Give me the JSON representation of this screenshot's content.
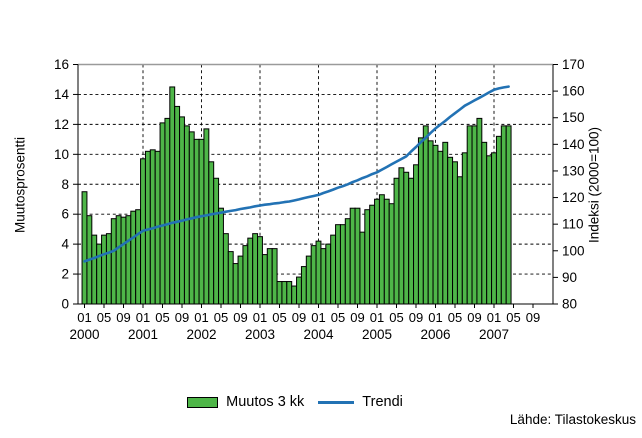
{
  "chart_data": {
    "type": "bar",
    "title": "",
    "x": [
      "2000-01",
      "2000-02",
      "2000-03",
      "2000-04",
      "2000-05",
      "2000-06",
      "2000-07",
      "2000-08",
      "2000-09",
      "2000-10",
      "2000-11",
      "2000-12",
      "2001-01",
      "2001-02",
      "2001-03",
      "2001-04",
      "2001-05",
      "2001-06",
      "2001-07",
      "2001-08",
      "2001-09",
      "2001-10",
      "2001-11",
      "2001-12",
      "2002-01",
      "2002-02",
      "2002-03",
      "2002-04",
      "2002-05",
      "2002-06",
      "2002-07",
      "2002-08",
      "2002-09",
      "2002-10",
      "2002-11",
      "2002-12",
      "2003-01",
      "2003-02",
      "2003-03",
      "2003-04",
      "2003-05",
      "2003-06",
      "2003-07",
      "2003-08",
      "2003-09",
      "2003-10",
      "2003-11",
      "2003-12",
      "2004-01",
      "2004-02",
      "2004-03",
      "2004-04",
      "2004-05",
      "2004-06",
      "2004-07",
      "2004-08",
      "2004-09",
      "2004-10",
      "2004-11",
      "2004-12",
      "2005-01",
      "2005-02",
      "2005-03",
      "2005-04",
      "2005-05",
      "2005-06",
      "2005-07",
      "2005-08",
      "2005-09",
      "2005-10",
      "2005-11",
      "2005-12",
      "2006-01",
      "2006-02",
      "2006-03",
      "2006-04",
      "2006-05",
      "2006-06",
      "2006-07",
      "2006-08",
      "2006-09",
      "2006-10",
      "2006-11",
      "2006-12",
      "2007-01",
      "2007-02",
      "2007-03",
      "2007-04"
    ],
    "series": [
      {
        "name": "Muutos 3 kk",
        "type": "bar",
        "axis": "left",
        "color": "#4eb648",
        "border_color": "#000000",
        "values": [
          7.5,
          5.9,
          4.6,
          4.0,
          4.6,
          4.7,
          5.7,
          5.9,
          5.8,
          5.9,
          6.2,
          6.3,
          9.7,
          10.2,
          10.3,
          10.2,
          12.1,
          12.4,
          14.5,
          13.2,
          12.5,
          11.9,
          11.5,
          11.0,
          11.0,
          11.7,
          9.5,
          8.4,
          6.4,
          4.7,
          3.5,
          2.7,
          3.2,
          3.9,
          4.4,
          4.7,
          4.5,
          3.3,
          3.7,
          3.7,
          1.5,
          1.5,
          1.5,
          1.2,
          1.8,
          2.5,
          3.2,
          3.9,
          4.2,
          3.7,
          4.0,
          4.6,
          5.3,
          5.3,
          5.7,
          6.4,
          6.4,
          4.8,
          6.3,
          6.6,
          7.0,
          7.3,
          7.0,
          6.7,
          8.4,
          9.1,
          8.8,
          8.4,
          9.3,
          11.1,
          11.9,
          10.9,
          10.6,
          10.2,
          10.8,
          9.8,
          9.5,
          8.5,
          10.1,
          11.9,
          11.9,
          12.4,
          10.8,
          9.9,
          10.1,
          11.2,
          11.9,
          11.9
        ]
      },
      {
        "name": "Trendi",
        "type": "line",
        "axis": "right",
        "color": "#2272b4",
        "values": [
          96.0,
          96.7,
          97.3,
          98.0,
          98.7,
          99.3,
          100.0,
          101.3,
          102.5,
          103.8,
          105.0,
          106.3,
          107.5,
          108.0,
          108.5,
          109.0,
          109.5,
          110.0,
          110.5,
          110.9,
          111.3,
          111.8,
          112.2,
          112.6,
          113.0,
          113.3,
          113.7,
          114.0,
          114.3,
          114.7,
          115.0,
          115.3,
          115.7,
          116.0,
          116.3,
          116.7,
          117.0,
          117.3,
          117.5,
          117.8,
          118.0,
          118.3,
          118.5,
          118.9,
          119.3,
          119.8,
          120.2,
          120.6,
          121.0,
          121.7,
          122.3,
          123.0,
          123.7,
          124.3,
          125.0,
          125.8,
          126.5,
          127.3,
          128.0,
          128.8,
          129.5,
          130.5,
          131.5,
          132.5,
          133.5,
          134.5,
          135.5,
          137.3,
          139.0,
          140.8,
          142.5,
          144.3,
          146.0,
          147.4,
          148.8,
          150.3,
          151.7,
          153.1,
          154.5,
          155.5,
          156.5,
          157.5,
          158.5,
          159.5,
          160.5,
          161.0,
          161.4,
          161.7
        ]
      }
    ],
    "ylim_left": [
      0,
      16
    ],
    "ylim_right": [
      80,
      170
    ],
    "grid": "dashed",
    "legend_position": "bottom-center"
  },
  "y_axis_left": {
    "title": "Muutosprosentti",
    "ticks": [
      "0",
      "2",
      "4",
      "6",
      "8",
      "10",
      "12",
      "14",
      "16"
    ]
  },
  "y_axis_right": {
    "title": "Indeksi (2000=100)",
    "ticks": [
      "80",
      "90",
      "100",
      "110",
      "120",
      "130",
      "140",
      "150",
      "160",
      "170"
    ]
  },
  "x_axis": {
    "month_labels": [
      "01",
      "05",
      "09"
    ],
    "years": [
      "2000",
      "2001",
      "2002",
      "2003",
      "2004",
      "2005",
      "2006",
      "2007"
    ]
  },
  "legend": [
    {
      "label": "Muutos 3 kk",
      "swatch": "green-bar"
    },
    {
      "label": "Trendi",
      "swatch": "blue-line"
    }
  ],
  "footer": {
    "source": "Lähde: Tilastokeskus"
  }
}
